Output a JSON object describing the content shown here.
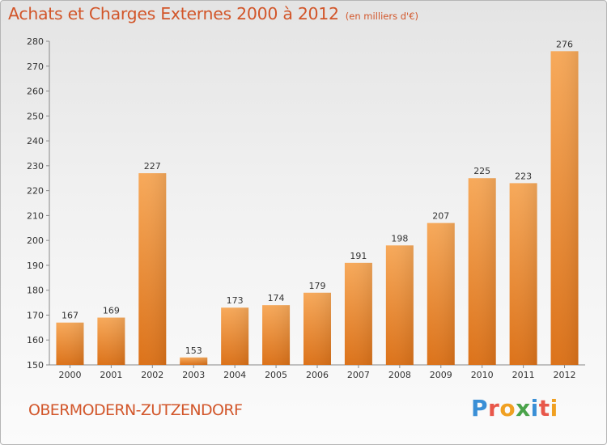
{
  "header": {
    "title": "Achats et Charges Externes 2000 à 2012",
    "unit": "(en milliers d'€)"
  },
  "footer": {
    "commune": "OBERMODERN-ZUTZENDORF",
    "brand": "Proxiti"
  },
  "colors": {
    "title": "#d2562a",
    "bar_light": "#f7a95a",
    "bar_dark": "#e0781e"
  },
  "chart_data": {
    "type": "bar",
    "title": "Achats et Charges Externes 2000 à 2012",
    "subtitle": "(en milliers d'€)",
    "categories": [
      "2000",
      "2001",
      "2002",
      "2003",
      "2004",
      "2005",
      "2006",
      "2007",
      "2008",
      "2009",
      "2010",
      "2011",
      "2012"
    ],
    "values": [
      167,
      169,
      227,
      153,
      173,
      174,
      179,
      191,
      198,
      207,
      225,
      223,
      276
    ],
    "ylim": [
      150,
      280
    ],
    "yticks": [
      150,
      160,
      170,
      180,
      190,
      200,
      210,
      220,
      230,
      240,
      250,
      260,
      270,
      280
    ],
    "grid": false,
    "data_labels": true
  }
}
